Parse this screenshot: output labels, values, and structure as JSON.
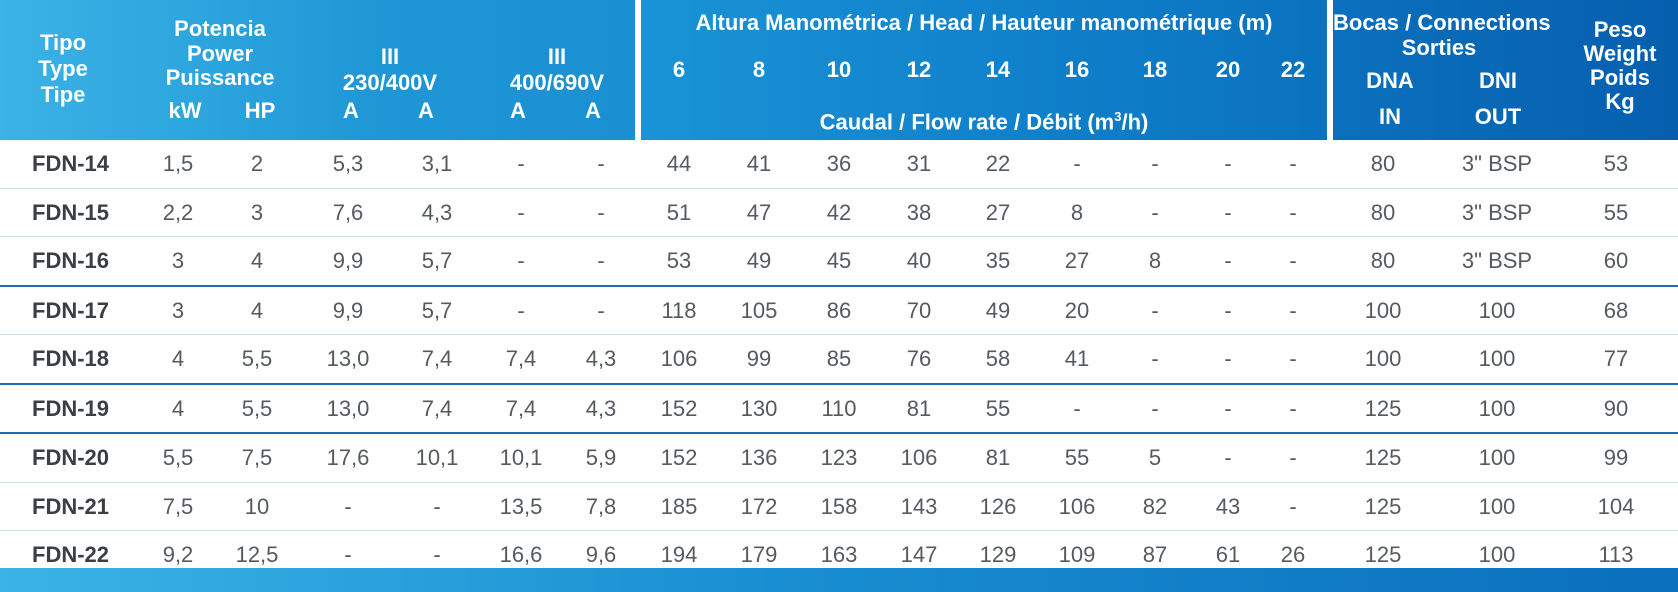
{
  "header": {
    "tipo": [
      "Tipo",
      "Type",
      "Tipe"
    ],
    "potencia": [
      "Potencia",
      "Power",
      "Puissance"
    ],
    "kw": "kW",
    "hp": "HP",
    "v230_top": "III",
    "v230_bottom": "230/400V",
    "v400_top": "III",
    "v400_bottom": "400/690V",
    "amp": "A",
    "altura": "Altura Manométrica / Head / Hauteur manométrique (m)",
    "heads": [
      "6",
      "8",
      "10",
      "12",
      "14",
      "16",
      "18",
      "20",
      "22"
    ],
    "caudal_prefix": "Caudal / Flow rate / Débit (m",
    "caudal_sup": "3",
    "caudal_suffix": "/h)",
    "bocas": [
      "Bocas / Connections",
      "Sorties"
    ],
    "dna": "DNA",
    "dni": "DNI",
    "in": "IN",
    "out": "OUT",
    "peso": [
      "Peso",
      "Weight",
      "Poids",
      "Kg"
    ]
  },
  "rows": [
    {
      "model": "FDN-14",
      "kw": "1,5",
      "hp": "2",
      "a230": "5,3",
      "a400": "3,1",
      "b400": "-",
      "b690": "-",
      "flows": [
        "44",
        "41",
        "36",
        "31",
        "22",
        "-",
        "-",
        "-",
        "-"
      ],
      "dna": "80",
      "dni": "3\" BSP",
      "weight": "53"
    },
    {
      "model": "FDN-15",
      "kw": "2,2",
      "hp": "3",
      "a230": "7,6",
      "a400": "4,3",
      "b400": "-",
      "b690": "-",
      "flows": [
        "51",
        "47",
        "42",
        "38",
        "27",
        "8",
        "-",
        "-",
        "-"
      ],
      "dna": "80",
      "dni": "3\" BSP",
      "weight": "55"
    },
    {
      "model": "FDN-16",
      "kw": "3",
      "hp": "4",
      "a230": "9,9",
      "a400": "5,7",
      "b400": "-",
      "b690": "-",
      "flows": [
        "53",
        "49",
        "45",
        "40",
        "35",
        "27",
        "8",
        "-",
        "-"
      ],
      "dna": "80",
      "dni": "3\" BSP",
      "weight": "60"
    },
    {
      "model": "FDN-17",
      "kw": "3",
      "hp": "4",
      "a230": "9,9",
      "a400": "5,7",
      "b400": "-",
      "b690": "-",
      "flows": [
        "118",
        "105",
        "86",
        "70",
        "49",
        "20",
        "-",
        "-",
        "-"
      ],
      "dna": "100",
      "dni": "100",
      "weight": "68"
    },
    {
      "model": "FDN-18",
      "kw": "4",
      "hp": "5,5",
      "a230": "13,0",
      "a400": "7,4",
      "b400": "7,4",
      "b690": "4,3",
      "flows": [
        "106",
        "99",
        "85",
        "76",
        "58",
        "41",
        "-",
        "-",
        "-"
      ],
      "dna": "100",
      "dni": "100",
      "weight": "77"
    },
    {
      "model": "FDN-19",
      "kw": "4",
      "hp": "5,5",
      "a230": "13,0",
      "a400": "7,4",
      "b400": "7,4",
      "b690": "4,3",
      "flows": [
        "152",
        "130",
        "110",
        "81",
        "55",
        "-",
        "-",
        "-",
        "-"
      ],
      "dna": "125",
      "dni": "100",
      "weight": "90"
    },
    {
      "model": "FDN-20",
      "kw": "5,5",
      "hp": "7,5",
      "a230": "17,6",
      "a400": "10,1",
      "b400": "10,1",
      "b690": "5,9",
      "flows": [
        "152",
        "136",
        "123",
        "106",
        "81",
        "55",
        "5",
        "-",
        "-"
      ],
      "dna": "125",
      "dni": "100",
      "weight": "99"
    },
    {
      "model": "FDN-21",
      "kw": "7,5",
      "hp": "10",
      "a230": "-",
      "a400": "-",
      "b400": "13,5",
      "b690": "7,8",
      "flows": [
        "185",
        "172",
        "158",
        "143",
        "126",
        "106",
        "82",
        "43",
        "-"
      ],
      "dna": "125",
      "dni": "100",
      "weight": "104"
    },
    {
      "model": "FDN-22",
      "kw": "9,2",
      "hp": "12,5",
      "a230": "-",
      "a400": "-",
      "b400": "16,6",
      "b690": "9,6",
      "flows": [
        "194",
        "179",
        "163",
        "147",
        "129",
        "109",
        "87",
        "61",
        "26"
      ],
      "dna": "125",
      "dni": "100",
      "weight": "113"
    }
  ]
}
